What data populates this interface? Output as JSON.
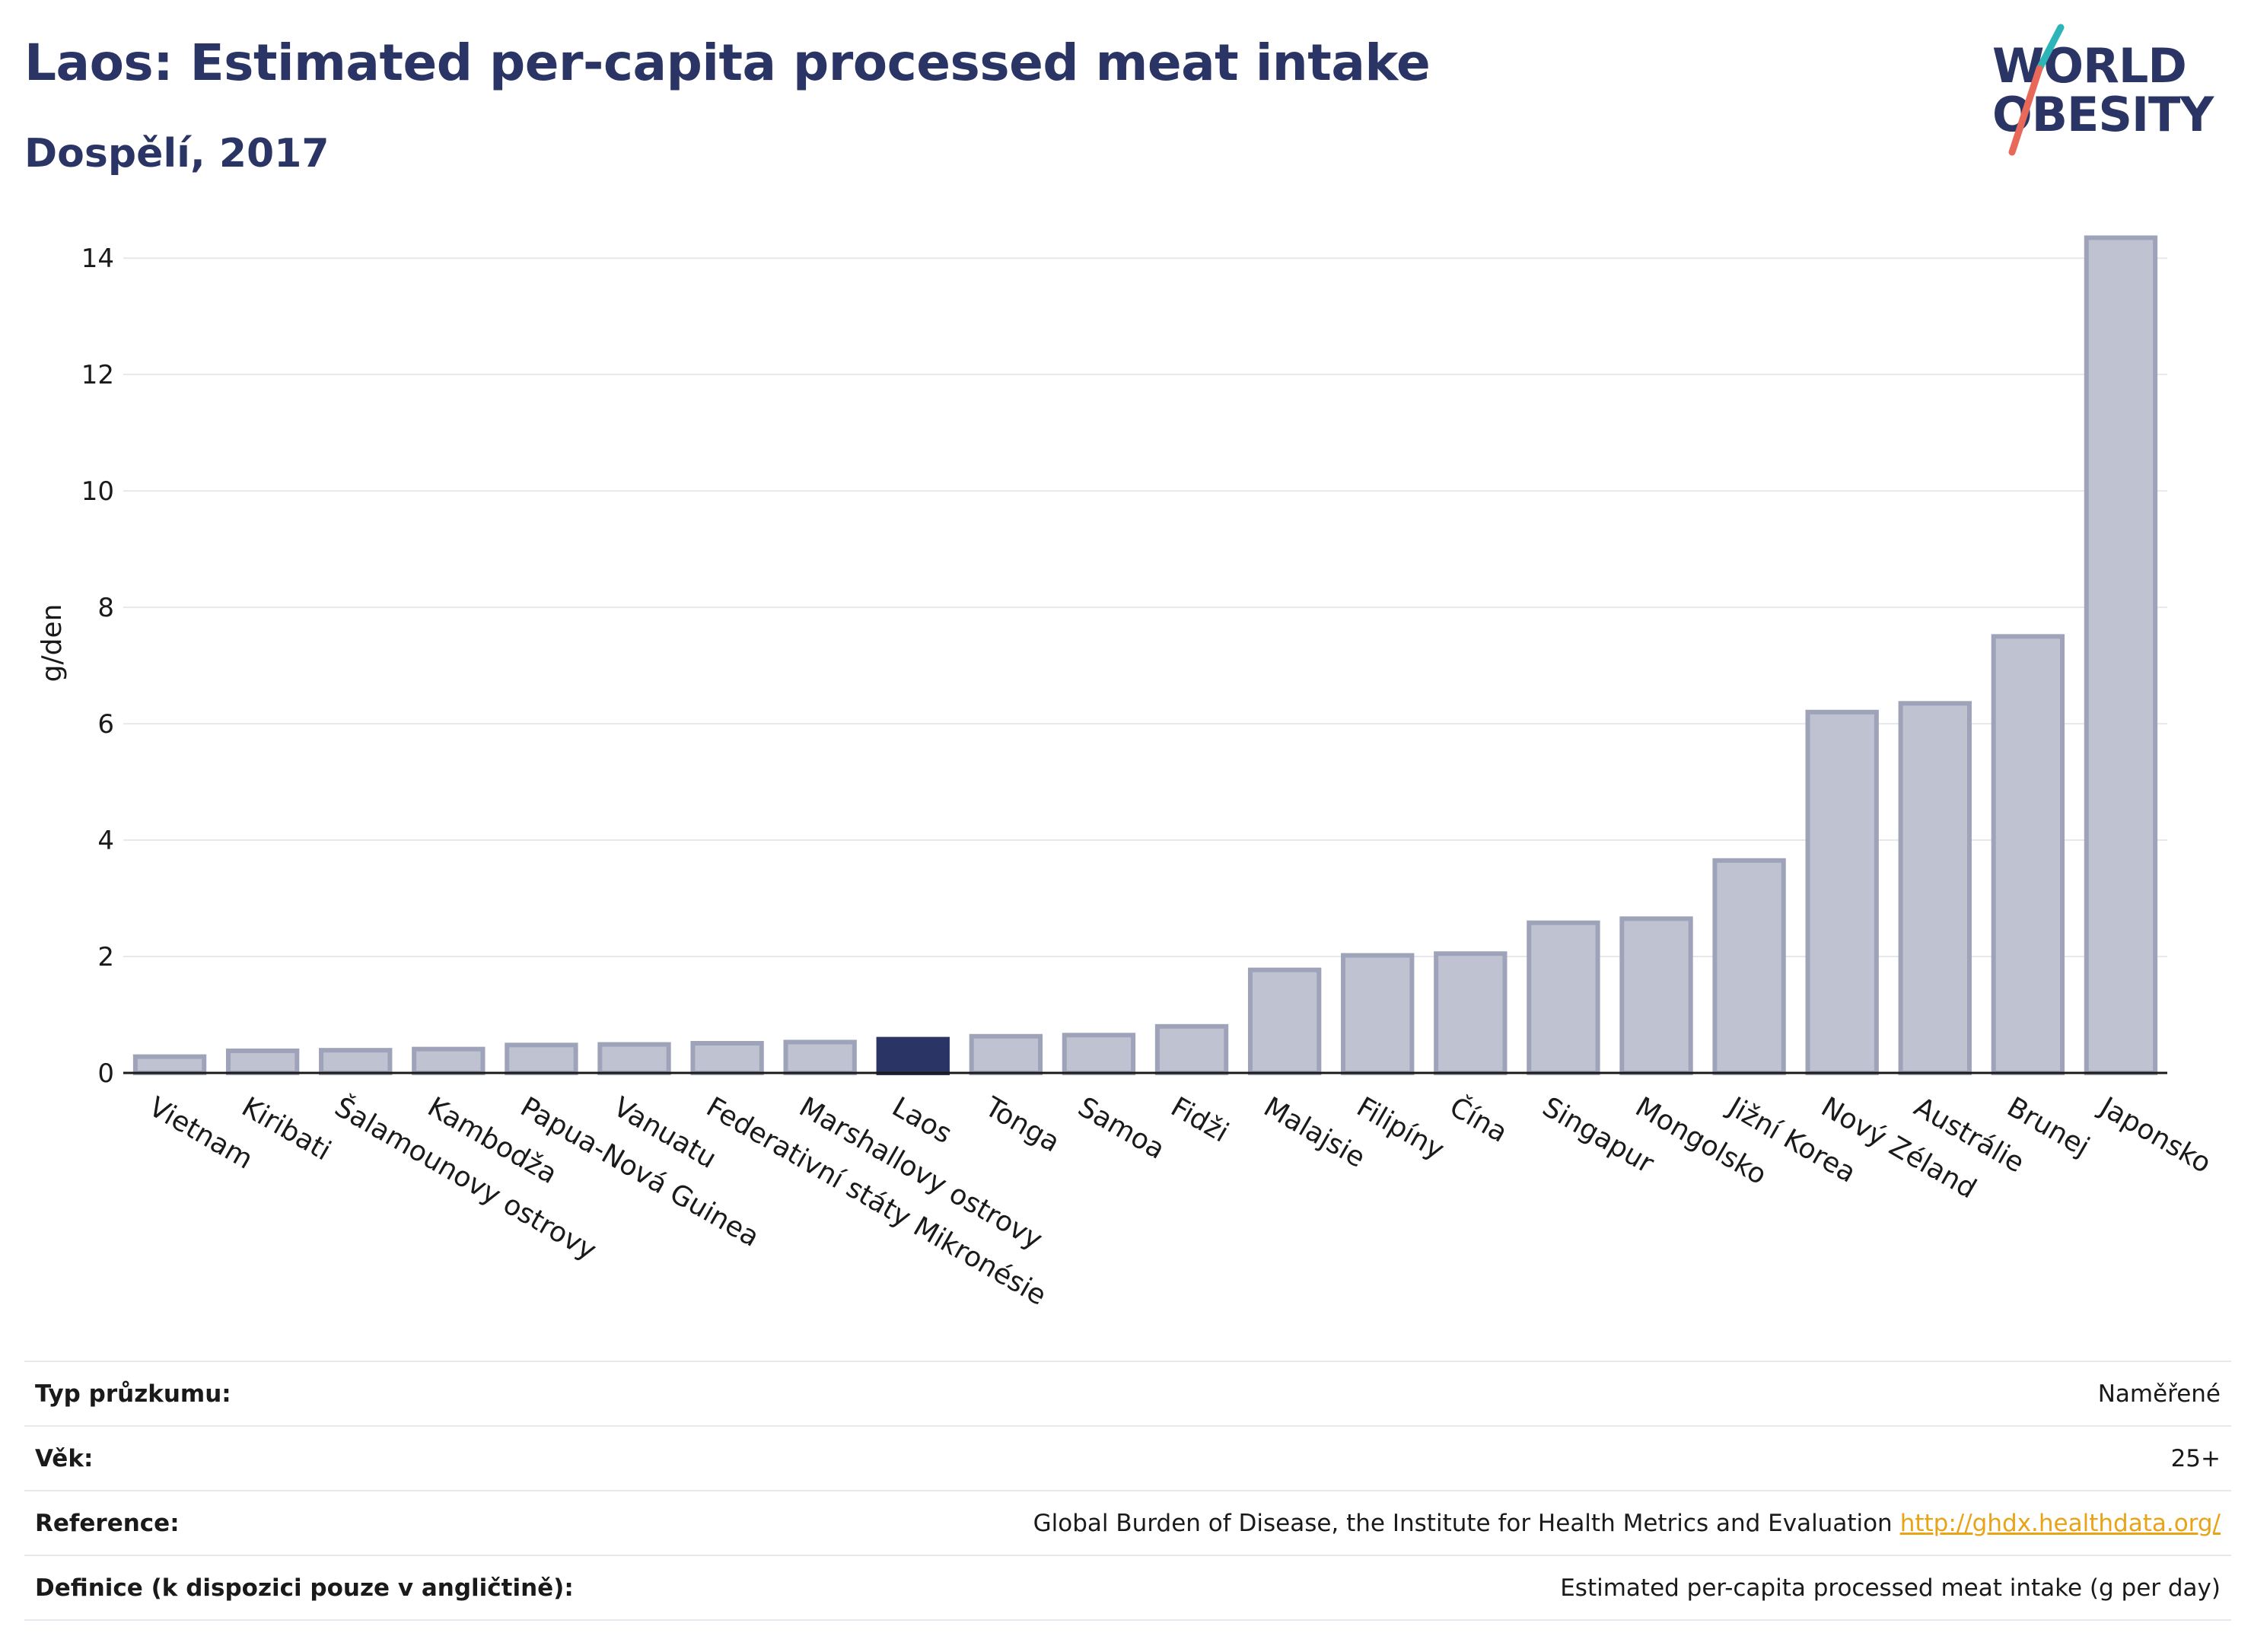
{
  "header": {
    "title": "Laos: Estimated per-capita processed meat intake",
    "subtitle": "Dospělí, 2017"
  },
  "logo": {
    "line1": "WORLD",
    "line2": "OBESITY"
  },
  "colors": {
    "highlight": "#2b3565",
    "bar_fill": "#bfc3d1",
    "bar_stroke": "#9ea3b9",
    "accent_teal": "#2bb5b8",
    "accent_coral": "#e8685a",
    "link": "#e8a317"
  },
  "chart_data": {
    "type": "bar",
    "ylabel": "g/den",
    "ylim": [
      0,
      14.8
    ],
    "yticks": [
      0,
      2,
      4,
      6,
      8,
      10,
      12,
      14
    ],
    "grid": true,
    "highlight": "Laos",
    "categories": [
      "Vietnam",
      "Kiribati",
      "Šalamounovy ostrovy",
      "Kambodža",
      "Papua-Nová Guinea",
      "Vanuatu",
      "Federativní státy Mikronésie",
      "Marshallovy ostrovy",
      "Laos",
      "Tonga",
      "Samoa",
      "Fidži",
      "Malajsie",
      "Filipíny",
      "Čína",
      "Singapur",
      "Mongolsko",
      "Jižní Korea",
      "Nový Zéland",
      "Austrálie",
      "Brunej",
      "Japonsko"
    ],
    "values": [
      0.28,
      0.38,
      0.39,
      0.41,
      0.48,
      0.49,
      0.51,
      0.53,
      0.58,
      0.63,
      0.65,
      0.8,
      1.77,
      2.02,
      2.05,
      2.58,
      2.65,
      3.65,
      6.2,
      6.35,
      7.5,
      14.35
    ]
  },
  "meta": [
    {
      "key": "Typ průzkumu:",
      "value": "Naměřené",
      "link": ""
    },
    {
      "key": "Věk:",
      "value": "25+",
      "link": ""
    },
    {
      "key": "Reference:",
      "value": "Global Burden of Disease, the Institute for Health Metrics and Evaluation",
      "link": "http://ghdx.healthdata.org/"
    },
    {
      "key": "Definice (k dispozici pouze v angličtině):",
      "value": "Estimated per-capita processed meat intake (g per day)",
      "link": ""
    }
  ]
}
